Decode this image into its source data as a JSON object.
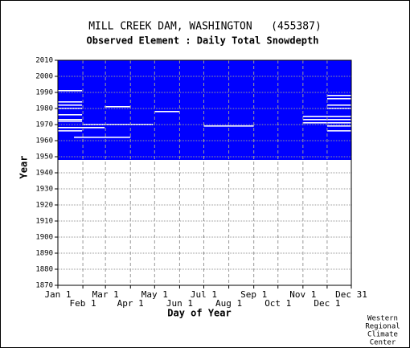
{
  "chart_data": {
    "type": "coverage",
    "title": "MILL CREEK DAM, WASHINGTON   (455387)",
    "subtitle": "Observed Element : Daily Total Snowdepth",
    "x_label": "Day of Year",
    "y_label": "Year",
    "credit": [
      "Western",
      "Regional",
      "Climate",
      "Center"
    ],
    "color": "#0000ff",
    "grid": true,
    "xlim": [
      1,
      365
    ],
    "ylim": [
      1870,
      2010
    ],
    "xticks": [
      {
        "value": 1,
        "label": "Jan 1"
      },
      {
        "value": 32,
        "label": "Feb 1"
      },
      {
        "value": 60,
        "label": "Mar 1"
      },
      {
        "value": 91,
        "label": "Apr 1"
      },
      {
        "value": 121,
        "label": "May 1"
      },
      {
        "value": 152,
        "label": "Jun 1"
      },
      {
        "value": 182,
        "label": "Jul 1"
      },
      {
        "value": 213,
        "label": "Aug 1"
      },
      {
        "value": 244,
        "label": "Sep 1"
      },
      {
        "value": 274,
        "label": "Oct 1"
      },
      {
        "value": 305,
        "label": "Nov 1"
      },
      {
        "value": 335,
        "label": "Dec 1"
      },
      {
        "value": 365,
        "label": "Dec 31"
      }
    ],
    "yticks": [
      1870,
      1880,
      1890,
      1900,
      1910,
      1920,
      1930,
      1940,
      1950,
      1960,
      1970,
      1980,
      1990,
      2000,
      2010
    ],
    "coverage": {
      "start_year": 1948,
      "end_year": 2010
    },
    "gaps": [
      {
        "year": 1970,
        "start": 32,
        "end": 119
      },
      {
        "year": 1968,
        "start": 1,
        "end": 59
      },
      {
        "year": 1962,
        "start": 21,
        "end": 91
      },
      {
        "year": 1978,
        "start": 121,
        "end": 152
      },
      {
        "year": 1981,
        "start": 59,
        "end": 91
      },
      {
        "year": 1969,
        "start": 182,
        "end": 244
      },
      {
        "year": 1991,
        "start": 1,
        "end": 31
      },
      {
        "year": 1984,
        "start": 1,
        "end": 31
      },
      {
        "year": 1982,
        "start": 1,
        "end": 31
      },
      {
        "year": 1980,
        "start": 1,
        "end": 31
      },
      {
        "year": 1976,
        "start": 1,
        "end": 31
      },
      {
        "year": 1973,
        "start": 1,
        "end": 31
      },
      {
        "year": 1972,
        "start": 1,
        "end": 31
      },
      {
        "year": 1966,
        "start": 1,
        "end": 31
      },
      {
        "year": 1988,
        "start": 335,
        "end": 365
      },
      {
        "year": 1986,
        "start": 335,
        "end": 365
      },
      {
        "year": 1982,
        "start": 335,
        "end": 365
      },
      {
        "year": 1980,
        "start": 335,
        "end": 365
      },
      {
        "year": 1975,
        "start": 305,
        "end": 365
      },
      {
        "year": 1973,
        "start": 305,
        "end": 365
      },
      {
        "year": 1971,
        "start": 305,
        "end": 365
      },
      {
        "year": 1969,
        "start": 335,
        "end": 365
      },
      {
        "year": 1966,
        "start": 335,
        "end": 365
      }
    ]
  }
}
